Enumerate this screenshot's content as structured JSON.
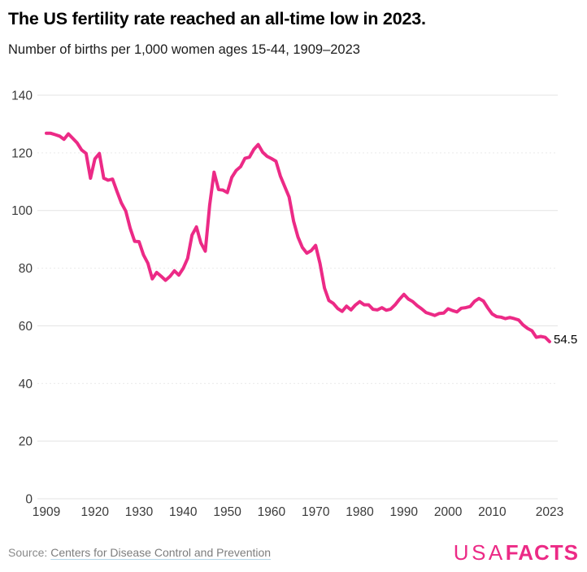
{
  "header": {
    "title": "The US fertility rate reached an all-time low in 2023.",
    "subtitle": "Number of births per 1,000 women ages 15-44, 1909–2023"
  },
  "chart_data": {
    "type": "line",
    "title": "The US fertility rate reached an all-time low in 2023.",
    "subtitle": "Number of births per 1,000 women ages 15-44, 1909–2023",
    "xlabel": "",
    "ylabel": "",
    "x_start": 1909,
    "x_end": 2023,
    "ylim": [
      0,
      140
    ],
    "yticks": [
      0,
      20,
      40,
      60,
      80,
      100,
      120,
      140
    ],
    "dashed_gridlines": [
      40,
      80,
      120
    ],
    "xticks": [
      1909,
      1920,
      1930,
      1940,
      1950,
      1960,
      1970,
      1980,
      1990,
      2000,
      2010,
      2023
    ],
    "grid": "horizontal",
    "legend": "none",
    "line_color": "#ec2a86",
    "annotation": "54.5",
    "series": [
      {
        "name": "Births per 1,000 women ages 15-44",
        "values": [
          126.8,
          126.8,
          126.3,
          125.8,
          124.7,
          126.6,
          125.0,
          123.4,
          121.0,
          119.8,
          111.2,
          117.9,
          119.8,
          111.2,
          110.5,
          110.9,
          106.6,
          102.6,
          99.8,
          93.8,
          89.3,
          89.2,
          84.6,
          81.7,
          76.3,
          78.5,
          77.2,
          75.8,
          77.1,
          79.1,
          77.6,
          79.9,
          83.4,
          91.5,
          94.3,
          88.8,
          85.9,
          101.9,
          113.3,
          107.3,
          107.1,
          106.2,
          111.5,
          113.9,
          115.2,
          118.1,
          118.5,
          121.2,
          122.9,
          120.2,
          118.8,
          118.0,
          117.1,
          112.0,
          108.3,
          104.7,
          96.3,
          90.8,
          87.2,
          85.2,
          86.1,
          87.9,
          81.6,
          73.1,
          68.8,
          67.8,
          66.0,
          65.0,
          66.8,
          65.5,
          67.2,
          68.4,
          67.3,
          67.3,
          65.7,
          65.5,
          66.3,
          65.4,
          65.8,
          67.3,
          69.2,
          70.9,
          69.3,
          68.4,
          67.0,
          65.9,
          64.6,
          64.1,
          63.6,
          64.3,
          64.4,
          65.9,
          65.3,
          64.8,
          66.1,
          66.3,
          66.7,
          68.5,
          69.5,
          68.6,
          66.2,
          64.1,
          63.2,
          63.0,
          62.5,
          62.9,
          62.5,
          62.0,
          60.3,
          59.1,
          58.3,
          56.0,
          56.3,
          56.0,
          54.5
        ]
      }
    ]
  },
  "footer": {
    "source_prefix": "Source:",
    "source_link": "Centers for Disease Control and Prevention",
    "logo_usa": "USA",
    "logo_facts": "FACTS",
    "logo_color": "#ec2a86"
  }
}
